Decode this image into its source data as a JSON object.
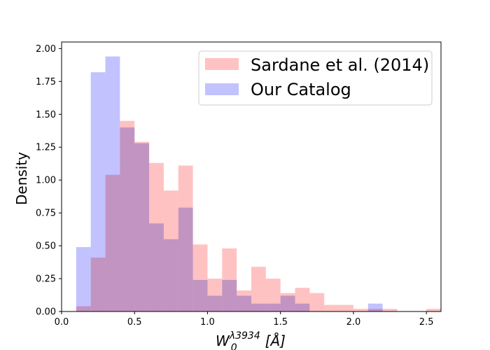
{
  "chart_data": {
    "type": "bar",
    "subtype": "overlapping-histogram",
    "title": "",
    "xlabel": "W_0^{λ3934} [Å]",
    "xlabel_parts": {
      "base": "W",
      "subscript": "0",
      "superscript": "λ3934",
      "unit": "[Å]"
    },
    "ylabel": "Density",
    "xlim": [
      0.0,
      2.6
    ],
    "ylim": [
      0.0,
      2.05
    ],
    "x_ticks": [
      0.0,
      0.5,
      1.0,
      1.5,
      2.0,
      2.5
    ],
    "x_tick_labels": [
      "0.0",
      "0.5",
      "1.0",
      "1.5",
      "2.0",
      "2.5"
    ],
    "y_ticks": [
      0.0,
      0.25,
      0.5,
      0.75,
      1.0,
      1.25,
      1.5,
      1.75,
      2.0
    ],
    "y_tick_labels": [
      "0.00",
      "0.25",
      "0.50",
      "0.75",
      "1.00",
      "1.25",
      "1.50",
      "1.75",
      "2.00"
    ],
    "grid": false,
    "legend_position": "top-right",
    "bin_width": 0.1,
    "series": [
      {
        "name": "Sardane et al. (2014)",
        "color": "#ff9999",
        "bin_starts": [
          0.1,
          0.2,
          0.3,
          0.4,
          0.5,
          0.6,
          0.7,
          0.8,
          0.9,
          1.0,
          1.1,
          1.2,
          1.3,
          1.4,
          1.5,
          1.6,
          1.7,
          1.8,
          1.9,
          2.0,
          2.1,
          2.2,
          2.5
        ],
        "values": [
          0.04,
          0.41,
          1.04,
          1.45,
          1.29,
          1.13,
          0.92,
          1.11,
          0.51,
          0.25,
          0.48,
          0.16,
          0.34,
          0.25,
          0.14,
          0.18,
          0.14,
          0.05,
          0.05,
          0.02,
          0.02,
          0.02,
          0.02
        ]
      },
      {
        "name": "Our Catalog",
        "color": "#9999ff",
        "bin_starts": [
          0.1,
          0.2,
          0.3,
          0.4,
          0.5,
          0.6,
          0.7,
          0.8,
          0.9,
          1.0,
          1.1,
          1.2,
          1.3,
          1.4,
          1.5,
          1.6,
          2.1
        ],
        "values": [
          0.49,
          1.82,
          1.94,
          1.4,
          1.28,
          0.67,
          0.55,
          0.79,
          0.24,
          0.12,
          0.24,
          0.12,
          0.06,
          0.06,
          0.12,
          0.06,
          0.06
        ]
      }
    ],
    "overlap_color": "#9966cc"
  }
}
